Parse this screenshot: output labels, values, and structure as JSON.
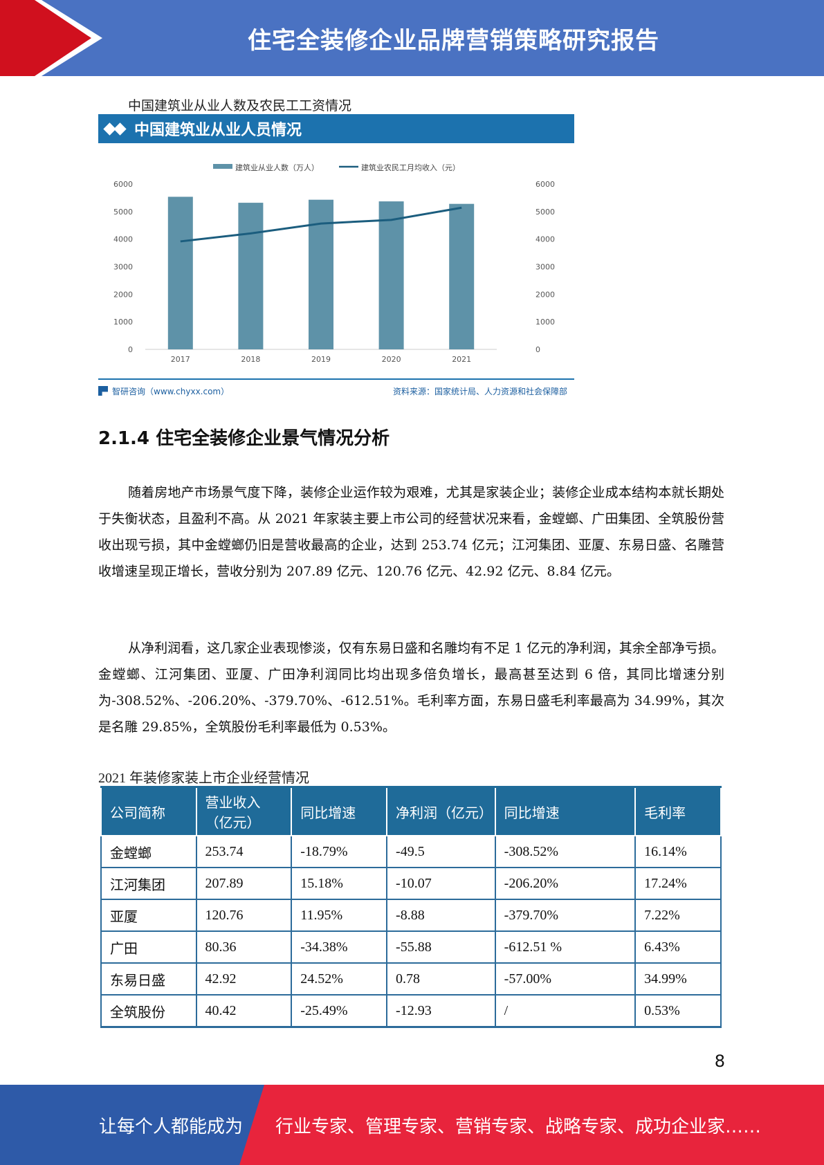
{
  "header": {
    "title": "住宅全装修企业品牌营销策略研究报告"
  },
  "colors": {
    "header_blue": "#4a72c2",
    "header_red": "#d0101e",
    "chart_bar": "#5e92a8",
    "chart_line": "#1b5d7e",
    "chart_title_bg": "#1c72ae",
    "table_header_bg": "#1f6b99",
    "footer_blue": "#2e5aa8",
    "footer_red": "#e8243c"
  },
  "chart_caption": "中国建筑业从业人数及农民工工资情况",
  "chart_data": {
    "type": "bar",
    "title": "中国建筑业从业人员情况",
    "categories": [
      "2017",
      "2018",
      "2019",
      "2020",
      "2021"
    ],
    "series": [
      {
        "name": "建筑业从业人数（万人）",
        "type": "bar",
        "axis": "left",
        "values": [
          5537,
          5320,
          5430,
          5370,
          5280
        ]
      },
      {
        "name": "建筑业农民工月均收入（元）",
        "type": "line",
        "axis": "right",
        "values": [
          3918,
          4209,
          4567,
          4699,
          5141
        ]
      }
    ],
    "y_left": {
      "min": 0,
      "max": 6000,
      "ticks": [
        "0",
        "1000",
        "2000",
        "3000",
        "4000",
        "5000",
        "6000"
      ]
    },
    "y_right": {
      "min": 0,
      "max": 6000,
      "ticks": [
        "0",
        "1000",
        "2000",
        "3000",
        "4000",
        "5000",
        "6000"
      ]
    },
    "legend_position": "top-center",
    "grid": false
  },
  "chart_footer": {
    "brand": "智研咨询（www.chyxx.com）",
    "source": "资料来源：国家统计局、人力资源和社会保障部"
  },
  "section_heading": "2.1.4 住宅全装修企业景气情况分析",
  "paragraphs": [
    "随着房地产市场景气度下降，装修企业运作较为艰难，尤其是家装企业；装修企业成本结构本就长期处于失衡状态，且盈利不高。从 2021 年家装主要上市公司的经营状况来看，金螳螂、广田集团、全筑股份营收出现亏损，其中金螳螂仍旧是营收最高的企业，达到 253.74 亿元；江河集团、亚厦、东易日盛、名雕营收增速呈现正增长，营收分别为 207.89 亿元、120.76 亿元、42.92 亿元、8.84 亿元。",
    "从净利润看，这几家企业表现惨淡，仅有东易日盛和名雕均有不足 1 亿元的净利润，其余全部净亏损。金螳螂、江河集团、亚厦、广田净利润同比均出现多倍负增长，最高甚至达到 6 倍，其同比增速分别为-308.52%、-206.20%、-379.70%、-612.51%。毛利率方面，东易日盛毛利率最高为 34.99%，其次是名雕 29.85%，全筑股份毛利率最低为 0.53%。"
  ],
  "table_caption": "2021 年装修家装上市企业经营情况",
  "table": {
    "headers": [
      "公司简称",
      "营业收入（亿元）",
      "同比增速",
      "净利润（亿元）",
      "同比增速",
      "毛利率"
    ],
    "rows": [
      [
        "金螳螂",
        "253.74",
        "-18.79%",
        "-49.5",
        "-308.52%",
        "16.14%"
      ],
      [
        "江河集团",
        "207.89",
        "15.18%",
        "-10.07",
        "-206.20%",
        "17.24%"
      ],
      [
        "亚厦",
        "120.76",
        "11.95%",
        "-8.88",
        "-379.70%",
        "7.22%"
      ],
      [
        "广田",
        "80.36",
        "-34.38%",
        "-55.88",
        "-612.51 %",
        "6.43%"
      ],
      [
        "东易日盛",
        "42.92",
        "24.52%",
        "0.78",
        "-57.00%",
        "34.99%"
      ],
      [
        "全筑股份",
        "40.42",
        "-25.49%",
        "-12.93",
        "/",
        "0.53%"
      ]
    ]
  },
  "page_number": "8",
  "footer": {
    "left_text": "让每个人都能成为",
    "right_text": "行业专家、管理专家、营销专家、战略专家、成功企业家……"
  }
}
